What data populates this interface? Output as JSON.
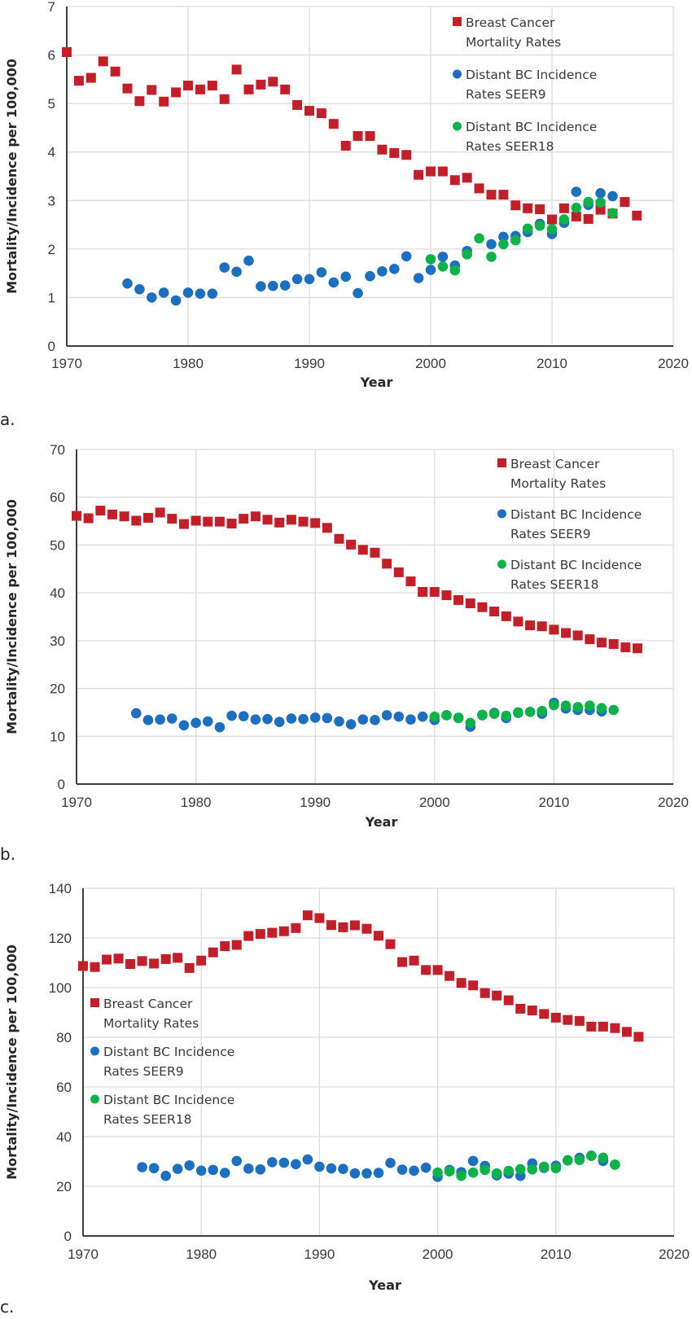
{
  "chart_data": [
    {
      "panel_label": "a.",
      "type": "scatter",
      "title": "",
      "xlabel": "Year",
      "ylabel": "Mortality/Incidence per 100,000",
      "xlim": [
        1970,
        2020
      ],
      "ylim": [
        0,
        7
      ],
      "xticks": [
        1970,
        1980,
        1990,
        2000,
        2010,
        2020
      ],
      "yticks": [
        0,
        1,
        2,
        3,
        4,
        5,
        6,
        7
      ],
      "grid": true,
      "legend_position": "top-right",
      "series": [
        {
          "name": "Breast Cancer Mortality Rates",
          "legend_lines": [
            "Breast Cancer",
            "Mortality Rates"
          ],
          "marker": "square",
          "color": "#C0202A",
          "x": [
            1970,
            1971,
            1972,
            1973,
            1974,
            1975,
            1976,
            1977,
            1978,
            1979,
            1980,
            1981,
            1982,
            1983,
            1984,
            1985,
            1986,
            1987,
            1988,
            1989,
            1990,
            1991,
            1992,
            1993,
            1994,
            1995,
            1996,
            1997,
            1998,
            1999,
            2000,
            2001,
            2002,
            2003,
            2004,
            2005,
            2006,
            2007,
            2008,
            2009,
            2010,
            2011,
            2012,
            2013,
            2014,
            2015,
            2016,
            2017
          ],
          "y": [
            6.06,
            5.47,
            5.53,
            5.87,
            5.66,
            5.31,
            5.05,
            5.28,
            5.04,
            5.23,
            5.37,
            5.29,
            5.37,
            5.09,
            5.7,
            5.29,
            5.39,
            5.45,
            5.29,
            4.97,
            4.85,
            4.8,
            4.58,
            4.13,
            4.33,
            4.33,
            4.05,
            3.98,
            3.94,
            3.53,
            3.6,
            3.6,
            3.42,
            3.47,
            3.25,
            3.12,
            3.12,
            2.9,
            2.84,
            2.82,
            2.61,
            2.84,
            2.67,
            2.62,
            2.81,
            2.73,
            2.97,
            2.69
          ]
        },
        {
          "name": "Distant BC Incidence Rates SEER9",
          "legend_lines": [
            "Distant BC Incidence",
            "Rates SEER9"
          ],
          "marker": "circle",
          "color": "#1F6FBF",
          "x": [
            1975,
            1976,
            1977,
            1978,
            1979,
            1980,
            1981,
            1982,
            1983,
            1984,
            1985,
            1986,
            1987,
            1988,
            1989,
            1990,
            1991,
            1992,
            1993,
            1994,
            1995,
            1996,
            1997,
            1998,
            1999,
            2000,
            2001,
            2002,
            2003,
            2005,
            2006,
            2007,
            2008,
            2009,
            2010,
            2011,
            2012,
            2013,
            2014,
            2015
          ],
          "y": [
            1.29,
            1.17,
            1.0,
            1.1,
            0.94,
            1.1,
            1.08,
            1.08,
            1.62,
            1.53,
            1.76,
            1.23,
            1.24,
            1.25,
            1.38,
            1.38,
            1.52,
            1.31,
            1.43,
            1.09,
            1.44,
            1.54,
            1.59,
            1.85,
            1.4,
            1.57,
            1.84,
            1.66,
            1.96,
            2.1,
            2.25,
            2.27,
            2.35,
            2.52,
            2.31,
            2.54,
            3.18,
            2.91,
            3.15,
            3.09
          ]
        },
        {
          "name": "Distant BC Incidence Rates SEER18",
          "legend_lines": [
            "Distant BC Incidence",
            "Rates SEER18"
          ],
          "marker": "circle",
          "color": "#10B04A",
          "x": [
            2000,
            2001,
            2002,
            2003,
            2004,
            2005,
            2006,
            2007,
            2008,
            2009,
            2010,
            2011,
            2012,
            2013,
            2014,
            2015
          ],
          "y": [
            1.79,
            1.64,
            1.56,
            1.89,
            2.22,
            1.84,
            2.1,
            2.18,
            2.42,
            2.48,
            2.41,
            2.61,
            2.85,
            2.97,
            2.96,
            2.74
          ]
        }
      ]
    },
    {
      "panel_label": "b.",
      "type": "scatter",
      "title": "",
      "xlabel": "Year",
      "ylabel": "Mortality/Incidence per 100,000",
      "xlim": [
        1970,
        2020
      ],
      "ylim": [
        0,
        70
      ],
      "xticks": [
        1970,
        1980,
        1990,
        2000,
        2010,
        2020
      ],
      "yticks": [
        0,
        10,
        20,
        30,
        40,
        50,
        60,
        70
      ],
      "grid": true,
      "legend_position": "top-right",
      "series": [
        {
          "name": "Breast Cancer Mortality Rates",
          "legend_lines": [
            "Breast Cancer",
            "Mortality Rates"
          ],
          "marker": "square",
          "color": "#C0202A",
          "x": [
            1970,
            1971,
            1972,
            1973,
            1974,
            1975,
            1976,
            1977,
            1978,
            1979,
            1980,
            1981,
            1982,
            1983,
            1984,
            1985,
            1986,
            1987,
            1988,
            1989,
            1990,
            1991,
            1992,
            1993,
            1994,
            1995,
            1996,
            1997,
            1998,
            1999,
            2000,
            2001,
            2002,
            2003,
            2004,
            2005,
            2006,
            2007,
            2008,
            2009,
            2010,
            2011,
            2012,
            2013,
            2014,
            2015,
            2016,
            2017
          ],
          "y": [
            56.1,
            55.6,
            57.2,
            56.4,
            56.0,
            55.1,
            55.7,
            56.8,
            55.5,
            54.4,
            55.1,
            54.9,
            54.9,
            54.5,
            55.5,
            56.0,
            55.3,
            54.7,
            55.3,
            54.9,
            54.6,
            53.6,
            51.3,
            50.1,
            49.0,
            48.4,
            46.1,
            44.3,
            42.4,
            40.2,
            40.2,
            39.5,
            38.5,
            37.8,
            37.0,
            36.1,
            35.1,
            34.0,
            33.2,
            33.0,
            32.3,
            31.6,
            31.1,
            30.3,
            29.6,
            29.3,
            28.6,
            28.4
          ]
        },
        {
          "name": "Distant BC Incidence Rates SEER9",
          "legend_lines": [
            "Distant BC Incidence",
            "Rates SEER9"
          ],
          "marker": "circle",
          "color": "#1F6FBF",
          "x": [
            1975,
            1976,
            1977,
            1978,
            1979,
            1980,
            1981,
            1982,
            1983,
            1984,
            1985,
            1986,
            1987,
            1988,
            1989,
            1990,
            1991,
            1992,
            1993,
            1994,
            1995,
            1996,
            1997,
            1998,
            1999,
            2000,
            2001,
            2002,
            2003,
            2004,
            2005,
            2006,
            2007,
            2008,
            2009,
            2010,
            2011,
            2012,
            2013,
            2014
          ],
          "y": [
            14.8,
            13.4,
            13.5,
            13.7,
            12.3,
            12.8,
            13.1,
            11.9,
            14.3,
            14.2,
            13.5,
            13.6,
            13.0,
            13.7,
            13.6,
            13.9,
            13.8,
            13.1,
            12.5,
            13.5,
            13.4,
            14.4,
            14.1,
            13.5,
            14.1,
            13.4,
            14.4,
            13.8,
            12.0,
            14.4,
            14.9,
            13.8,
            14.9,
            15.1,
            14.7,
            17.0,
            15.8,
            15.5,
            15.5,
            15.2
          ]
        },
        {
          "name": "Distant BC Incidence Rates SEER18",
          "legend_lines": [
            "Distant BC Incidence",
            "Rates SEER18"
          ],
          "marker": "circle",
          "color": "#10B04A",
          "x": [
            2000,
            2001,
            2002,
            2003,
            2004,
            2005,
            2006,
            2007,
            2008,
            2009,
            2010,
            2011,
            2012,
            2013,
            2014,
            2015
          ],
          "y": [
            14.1,
            14.4,
            13.9,
            12.8,
            14.5,
            14.7,
            14.3,
            15.0,
            15.1,
            15.3,
            16.5,
            16.4,
            16.1,
            16.4,
            15.9,
            15.5
          ]
        }
      ]
    },
    {
      "panel_label": "c.",
      "type": "scatter",
      "title": "",
      "xlabel": "Year",
      "ylabel": "Mortality/Incidence per 100,000",
      "xlim": [
        1970,
        2020
      ],
      "ylim": [
        0,
        140
      ],
      "xticks": [
        1970,
        1980,
        1990,
        2000,
        2010,
        2020
      ],
      "yticks": [
        0,
        20,
        40,
        60,
        80,
        100,
        120,
        140
      ],
      "grid": true,
      "legend_position": "middle-left",
      "series": [
        {
          "name": "Breast Cancer Mortality Rates",
          "legend_lines": [
            "Breast Cancer",
            "Mortality Rates"
          ],
          "marker": "square",
          "color": "#C0202A",
          "x": [
            1970,
            1971,
            1972,
            1973,
            1974,
            1975,
            1976,
            1977,
            1978,
            1979,
            1980,
            1981,
            1982,
            1983,
            1984,
            1985,
            1986,
            1987,
            1988,
            1989,
            1990,
            1991,
            1992,
            1993,
            1994,
            1995,
            1996,
            1997,
            1998,
            1999,
            2000,
            2001,
            2002,
            2003,
            2004,
            2005,
            2006,
            2007,
            2008,
            2009,
            2010,
            2011,
            2012,
            2013,
            2014,
            2015,
            2016,
            2017
          ],
          "y": [
            108.7,
            108.3,
            111.3,
            111.7,
            109.5,
            110.7,
            109.7,
            111.5,
            112.0,
            107.9,
            110.9,
            114.2,
            116.7,
            117.2,
            120.8,
            121.6,
            122.1,
            122.7,
            124.0,
            129.1,
            128.0,
            125.2,
            124.3,
            125.1,
            123.7,
            120.9,
            117.5,
            110.3,
            110.9,
            107.1,
            107.1,
            104.7,
            101.9,
            100.9,
            97.8,
            96.8,
            94.9,
            91.5,
            90.8,
            89.4,
            87.9,
            87.0,
            86.6,
            84.3,
            84.3,
            83.7,
            82.2,
            80.2
          ]
        },
        {
          "name": "Distant BC Incidence Rates SEER9",
          "legend_lines": [
            "Distant BC Incidence",
            "Rates SEER9"
          ],
          "marker": "circle",
          "color": "#1F6FBF",
          "x": [
            1975,
            1976,
            1977,
            1978,
            1979,
            1980,
            1981,
            1982,
            1983,
            1984,
            1985,
            1986,
            1987,
            1988,
            1989,
            1990,
            1991,
            1992,
            1993,
            1994,
            1995,
            1996,
            1997,
            1998,
            1999,
            2000,
            2001,
            2002,
            2003,
            2004,
            2005,
            2006,
            2007,
            2008,
            2009,
            2010,
            2011,
            2012,
            2013,
            2014,
            2015
          ],
          "y": [
            27.7,
            27.3,
            24.2,
            27.0,
            28.4,
            26.3,
            26.6,
            25.4,
            30.2,
            27.1,
            26.8,
            29.7,
            29.5,
            28.9,
            30.8,
            27.9,
            27.2,
            27.0,
            25.2,
            25.2,
            25.4,
            29.4,
            26.7,
            26.3,
            27.5,
            23.8,
            26.6,
            25.7,
            30.2,
            28.2,
            24.4,
            25.1,
            24.2,
            29.2,
            27.4,
            28.3,
            30.4,
            31.5,
            32.3,
            30.2,
            28.7
          ]
        },
        {
          "name": "Distant BC Incidence Rates SEER18",
          "legend_lines": [
            "Distant BC Incidence",
            "Rates SEER18"
          ],
          "marker": "circle",
          "color": "#10B04A",
          "x": [
            2000,
            2001,
            2002,
            2003,
            2004,
            2005,
            2006,
            2007,
            2008,
            2009,
            2010,
            2011,
            2012,
            2013,
            2014,
            2015
          ],
          "y": [
            25.5,
            26.0,
            24.2,
            25.5,
            26.6,
            25.2,
            26.2,
            26.9,
            26.8,
            27.9,
            27.3,
            30.5,
            30.6,
            32.3,
            31.5,
            28.7
          ]
        }
      ]
    }
  ]
}
